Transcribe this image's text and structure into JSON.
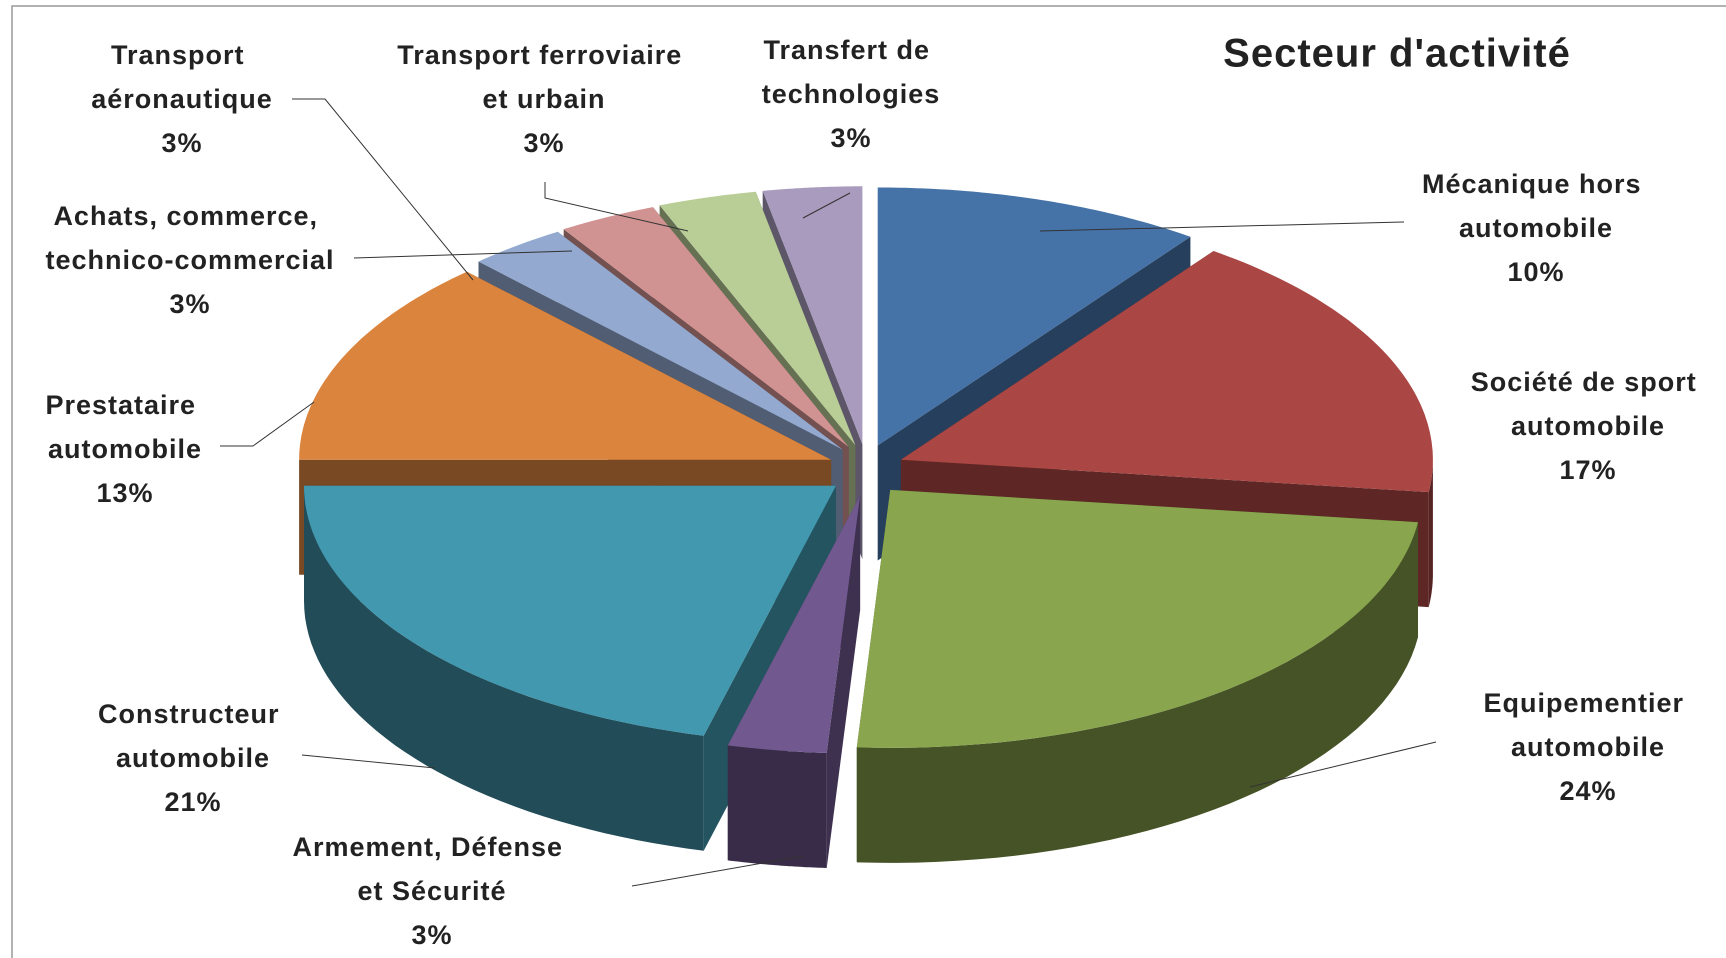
{
  "chart_data": {
    "type": "pie3d",
    "title": "Secteur d'activité",
    "categories": [
      "Mécanique hors automobile",
      "Société de sport automobile",
      "Equipementier automobile",
      "Armement, Défense et Sécurité",
      "Constructeur automobile",
      "Prestataire automobile",
      "Achats, commerce, technico-commercial",
      "Transport aéronautique",
      "Transport ferroviaire et urbain",
      "Transfert de technologies"
    ],
    "values": [
      10,
      17,
      24,
      3,
      21,
      13,
      3,
      3,
      3,
      3
    ],
    "value_labels": [
      "10%",
      "17%",
      "24%",
      "3%",
      "21%",
      "13%",
      "3%",
      "3%",
      "3%",
      "3%"
    ],
    "colors": [
      "#4572a7",
      "#aa4643",
      "#89a54e",
      "#71588f",
      "#4198af",
      "#db843d",
      "#93a9cf",
      "#d19392",
      "#b9cd96",
      "#a99bbd"
    ]
  }
}
